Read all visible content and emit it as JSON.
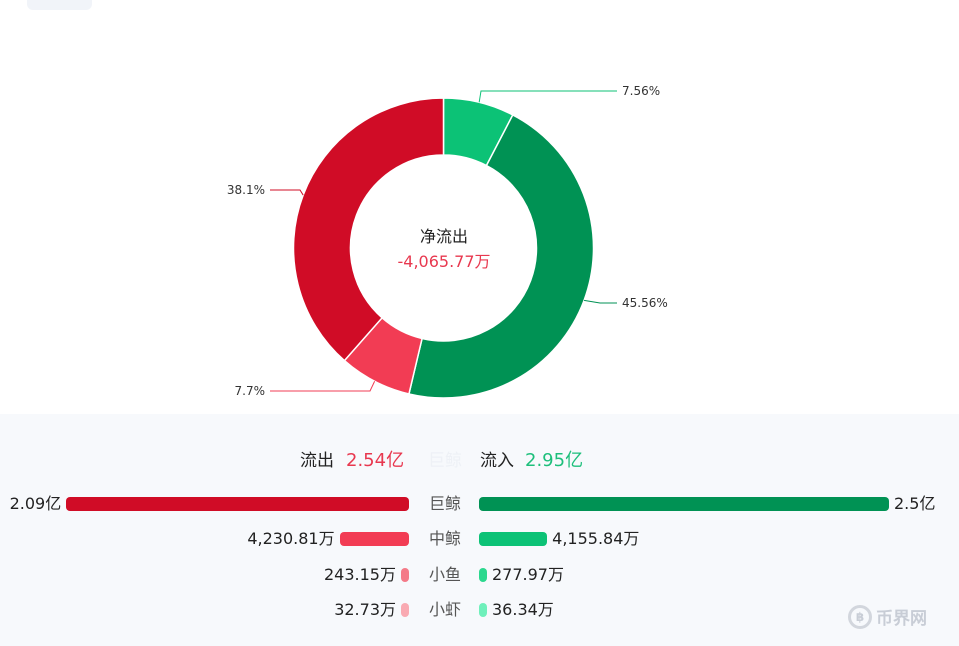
{
  "chart_data": [
    {
      "type": "pie",
      "variant": "donut",
      "slices": [
        {
          "label": "7.56%",
          "value": 7.56,
          "color": "#0cc276"
        },
        {
          "label": "45.56%",
          "value": 45.56,
          "color": "#009254"
        },
        {
          "label": "7.7%",
          "value": 7.7,
          "color": "#f23c54"
        },
        {
          "label": "38.1%",
          "value": 38.1,
          "color": "#d00c26"
        }
      ],
      "center": {
        "title": "净流出",
        "value": "-4,065.77万"
      }
    },
    {
      "type": "bar",
      "orientation": "horizontal-diverging",
      "summary": {
        "out_label": "流出",
        "out_total": "2.54亿",
        "faded_label": "巨鲸",
        "in_label": "流入",
        "in_total": "2.95亿"
      },
      "categories": [
        "巨鲸",
        "中鲸",
        "小鱼",
        "小虾"
      ],
      "series": [
        {
          "name": "流出",
          "values": [
            20900,
            4230.81,
            243.15,
            32.73
          ],
          "display": [
            "2.09亿",
            "4,230.81万",
            "243.15万",
            "32.73万"
          ],
          "colors": [
            "#d00c26",
            "#f23c54",
            "#f47a88",
            "#f9aab2"
          ]
        },
        {
          "name": "流入",
          "values": [
            25000,
            4155.84,
            277.97,
            36.34
          ],
          "display": [
            "2.5亿",
            "4,155.84万",
            "277.97万",
            "36.34万"
          ],
          "colors": [
            "#009254",
            "#0cc276",
            "#2bd88e",
            "#6ff0bb"
          ]
        }
      ]
    }
  ],
  "watermark": {
    "text": "币界网",
    "icon": "coin-icon"
  }
}
